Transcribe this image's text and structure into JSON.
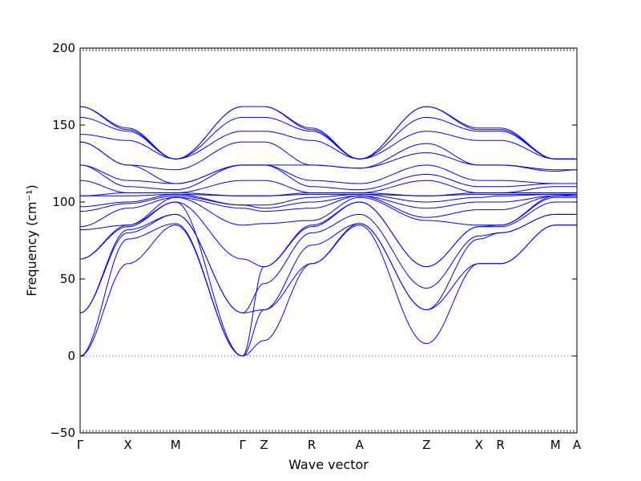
{
  "chart_data": {
    "type": "line",
    "title": "",
    "xlabel": "Wave vector",
    "ylabel": "Frequency (cm⁻¹)",
    "ylim": [
      -50,
      200
    ],
    "yticks": [
      -50,
      0,
      50,
      100,
      150,
      200
    ],
    "grid": false,
    "legend": "none",
    "series_color": "#0000ff",
    "zero_line": {
      "value": 0,
      "style": "dotted",
      "color": "#555555"
    },
    "high_symmetry_points": [
      {
        "label": "Γ",
        "x": 0
      },
      {
        "label": "X",
        "x": 1.0
      },
      {
        "label": "M",
        "x": 2.0
      },
      {
        "label": "Γ",
        "x": 3.4
      },
      {
        "label": "Z",
        "x": 3.85
      },
      {
        "label": "R",
        "x": 4.85
      },
      {
        "label": "A",
        "x": 5.85
      },
      {
        "label": "Z",
        "x": 7.25
      },
      {
        "label": "X",
        "x": 8.35
      },
      {
        "label": "R",
        "x": 8.8
      },
      {
        "label": "M",
        "x": 9.95
      },
      {
        "label": "A",
        "x": 10.4
      }
    ],
    "xlim": [
      0,
      10.4
    ],
    "bands": [
      [
        0,
        60,
        85,
        0,
        10,
        60,
        85,
        8,
        60,
        60,
        85,
        85
      ],
      [
        0,
        76,
        86,
        0,
        30,
        60,
        86,
        30,
        60,
        60,
        85,
        85
      ],
      [
        28,
        80,
        92,
        28,
        30,
        72,
        86,
        30,
        76,
        80,
        92,
        92
      ],
      [
        28,
        82,
        92,
        28,
        47,
        80,
        92,
        44,
        78,
        80,
        92,
        92
      ],
      [
        63,
        84,
        100,
        0,
        58,
        84,
        100,
        58,
        84,
        84,
        100,
        100
      ],
      [
        63,
        85,
        100,
        63,
        58,
        85,
        100,
        58,
        84,
        85,
        103,
        103
      ],
      [
        82,
        85,
        103,
        85,
        86,
        88,
        103,
        88,
        85,
        85,
        104,
        104
      ],
      [
        84,
        96,
        103,
        96,
        94,
        96,
        104,
        90,
        95,
        95,
        104,
        104
      ],
      [
        94,
        99,
        104,
        98,
        96,
        100,
        104,
        96,
        100,
        100,
        104,
        105
      ],
      [
        97,
        100,
        105,
        98,
        98,
        103,
        105,
        100,
        103,
        104,
        105,
        105
      ],
      [
        104,
        104,
        105,
        104,
        104,
        105,
        105,
        104,
        105,
        105,
        105,
        105
      ],
      [
        104,
        106,
        106,
        104,
        104,
        106,
        106,
        104,
        106,
        106,
        106,
        106
      ],
      [
        114,
        106,
        106,
        114,
        114,
        106,
        106,
        114,
        106,
        106,
        110,
        110
      ],
      [
        124,
        110,
        108,
        124,
        124,
        110,
        108,
        118,
        110,
        110,
        112,
        112
      ],
      [
        124,
        114,
        112,
        124,
        124,
        114,
        112,
        124,
        114,
        114,
        112,
        112
      ],
      [
        139,
        124,
        112,
        124,
        124,
        124,
        122,
        132,
        124,
        124,
        120,
        121
      ],
      [
        139,
        124,
        121,
        139,
        139,
        124,
        122,
        138,
        124,
        124,
        121,
        121
      ],
      [
        144,
        140,
        128,
        146,
        146,
        140,
        128,
        146,
        140,
        140,
        128,
        128
      ],
      [
        155,
        146,
        128,
        155,
        155,
        146,
        128,
        155,
        146,
        146,
        128,
        128
      ],
      [
        162,
        147,
        128,
        162,
        162,
        147,
        128,
        162,
        147,
        147,
        128,
        128
      ],
      [
        162,
        148,
        128,
        162,
        162,
        148,
        128,
        162,
        148,
        148,
        128,
        128
      ]
    ]
  }
}
